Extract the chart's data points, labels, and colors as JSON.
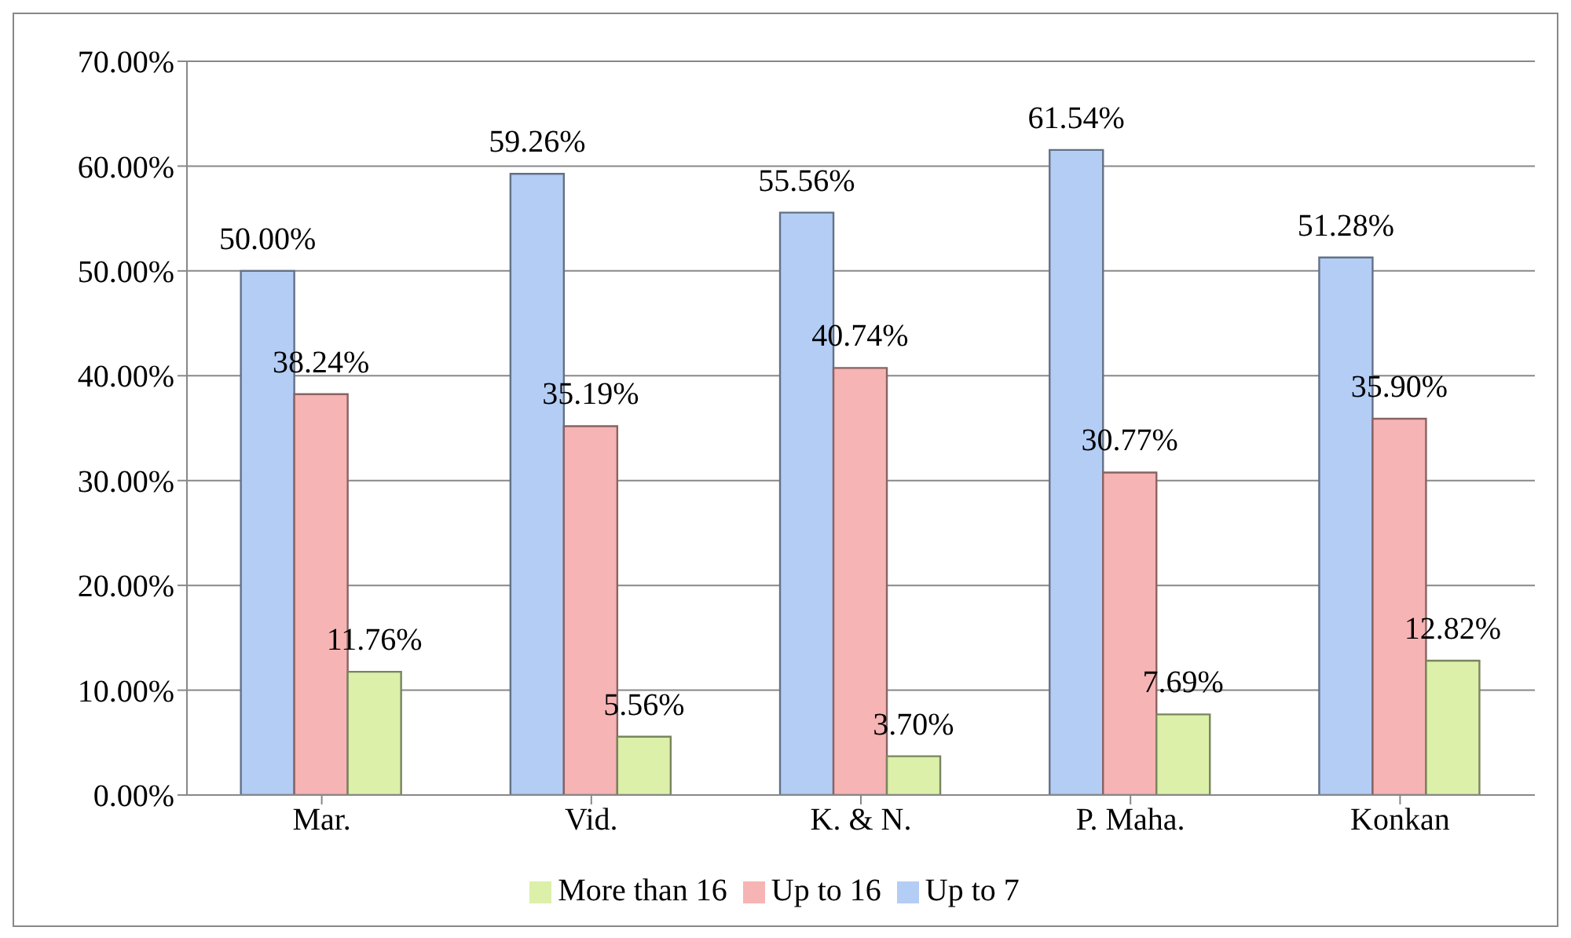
{
  "chart_data": {
    "type": "bar",
    "categories": [
      "Mar.",
      "Vid.",
      "K. & N.",
      "P. Maha.",
      "Konkan"
    ],
    "series": [
      {
        "name": "Up to 7",
        "color": "#b4cdf5",
        "values": [
          50.0,
          59.26,
          55.56,
          61.54,
          51.28
        ],
        "value_labels": [
          "50.00%",
          "59.26%",
          "55.56%",
          "61.54%",
          "51.28%"
        ]
      },
      {
        "name": "Up to 16",
        "color": "#f7b4b4",
        "values": [
          38.24,
          35.19,
          40.74,
          30.77,
          35.9
        ],
        "value_labels": [
          "38.24%",
          "35.19%",
          "40.74%",
          "30.77%",
          "35.90%"
        ]
      },
      {
        "name": "More than 16",
        "color": "#dcf0aa",
        "values": [
          11.76,
          5.56,
          3.7,
          7.69,
          12.82
        ],
        "value_labels": [
          "11.76%",
          "5.56%",
          "3.70%",
          "7.69%",
          "12.82%"
        ]
      }
    ],
    "ylim": [
      0,
      70
    ],
    "yticks": [
      {
        "value": 0,
        "label": "0.00%"
      },
      {
        "value": 10,
        "label": "10.00%"
      },
      {
        "value": 20,
        "label": "20.00%"
      },
      {
        "value": 30,
        "label": "30.00%"
      },
      {
        "value": 40,
        "label": "40.00%"
      },
      {
        "value": 50,
        "label": "50.00%"
      },
      {
        "value": 60,
        "label": "60.00%"
      },
      {
        "value": 70,
        "label": "70.00%"
      }
    ],
    "grid": "y",
    "legend": "bottom"
  }
}
